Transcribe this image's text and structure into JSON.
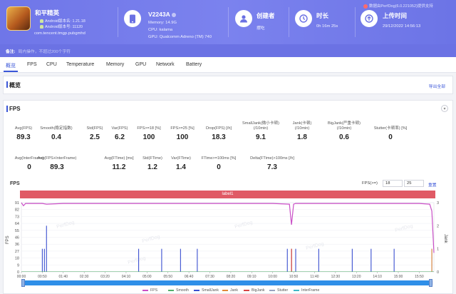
{
  "header": {
    "app": {
      "name": "和平精英",
      "android_line1": "Android版本名: 1.21.18",
      "android_line2": "Android版本号: 11120",
      "package": "com.tencent.tmgp.pubgmhd"
    },
    "device": {
      "model": "V2243A",
      "memory": "Memory: 14.9G",
      "cpu": "CPU: kalama",
      "gpu": "GPU: Qualcomm Adreno (TM) 740"
    },
    "creator": {
      "title": "创建者",
      "value": "摆吃"
    },
    "duration": {
      "title": "时长",
      "value": "0h 16m 25s"
    },
    "upload": {
      "title": "上传时间",
      "value": "29/12/2022 14:56:13"
    },
    "perfdog": "数据由PerfDog(6.0.221052)提供支持",
    "note_label": "备注:",
    "note_value": "局内操作，不超过200个字符"
  },
  "tabs": [
    "概览",
    "FPS",
    "CPU",
    "Temperature",
    "Memory",
    "GPU",
    "Network",
    "Battery"
  ],
  "active_tab": "概览",
  "overview": {
    "title": "概览",
    "export_label": "导出全部"
  },
  "fps_section": {
    "title": "FPS",
    "stats_row1": [
      {
        "label": "Avg(FPS)",
        "value": "89.3"
      },
      {
        "label": "Smooth(稳定指数)",
        "value": "0.4"
      },
      {
        "label": "Std(FPS)",
        "value": "2.5"
      },
      {
        "label": "Var(FPS)",
        "value": "6.2"
      },
      {
        "label": "FPS>=18 [%]",
        "value": "100"
      },
      {
        "label": "FPS>=25 [%]",
        "value": "100"
      },
      {
        "label": "Drop(FPS) [/h]",
        "value": "18.3"
      },
      {
        "label": "SmallJank(微小卡顿)\n(/10min)",
        "value": "9.1"
      },
      {
        "label": "Jank(卡顿)\n(/10min)",
        "value": "1.8"
      },
      {
        "label": "BigJank(严重卡顿)\n(/10min)",
        "value": "0.6"
      },
      {
        "label": "Stutter(卡顿率) [%]",
        "value": "0"
      }
    ],
    "stats_row2": [
      {
        "label": "Avg(InterFrame)",
        "value": "0"
      },
      {
        "label": "Avg(FPS+InterFrame)",
        "value": "89.3"
      },
      {
        "label": "Avg(FTime) [ms]",
        "value": "11.2"
      },
      {
        "label": "Std(FTime)",
        "value": "1.2"
      },
      {
        "label": "Var(FTime)",
        "value": "1.4"
      },
      {
        "label": "FTime>=100ms [%]",
        "value": "0"
      },
      {
        "label": "Delta(FTime)>100ms [/h]",
        "value": "7.3"
      }
    ],
    "chart_title": "FPS",
    "fps_threshold_label": "FPS(>=)",
    "fps_threshold_a": "18",
    "fps_threshold_b": "25",
    "reset_label": "重置",
    "label_band": "label1",
    "watermark": "PerfDog"
  },
  "chart_data": {
    "type": "line",
    "title": "FPS",
    "ylabel": "FPS",
    "y2label": "Jank",
    "y_ticks": [
      "91",
      "82",
      "73",
      "64",
      "55",
      "46",
      "36",
      "27",
      "18",
      "9",
      "0"
    ],
    "y2_ticks": [
      "3",
      "2",
      "1",
      "0"
    ],
    "ylim": [
      0,
      91
    ],
    "y2lim": [
      0,
      3
    ],
    "x_ticks": [
      "00:00",
      "00:50",
      "01:40",
      "02:30",
      "03:20",
      "04:10",
      "05:00",
      "05:50",
      "06:40",
      "07:30",
      "08:20",
      "09:10",
      "10:00",
      "10:50",
      "11:40",
      "12:30",
      "13:20",
      "14:10",
      "15:00",
      "15:50"
    ],
    "series": [
      {
        "name": "FPS",
        "color": "#c94fc6",
        "x": [
          "00:00",
          "00:05",
          "00:10",
          "00:50",
          "01:00",
          "01:40",
          "02:30",
          "03:20",
          "04:10",
          "05:00",
          "05:50",
          "06:40",
          "07:30",
          "08:20",
          "09:10",
          "10:00",
          "10:40",
          "10:45",
          "10:50",
          "10:55",
          "11:40",
          "12:30",
          "13:20",
          "14:10",
          "15:00",
          "15:50",
          "16:15",
          "16:20",
          "16:25"
        ],
        "values": [
          91,
          87,
          90,
          90,
          89,
          90,
          90,
          90,
          90,
          90,
          90,
          90,
          90,
          90,
          90,
          90,
          89,
          62,
          89,
          90,
          90,
          90,
          90,
          90,
          90,
          90,
          89,
          80,
          25
        ]
      },
      {
        "name": "Smooth",
        "color": "#52b06b",
        "values": []
      },
      {
        "name": "SmallJank",
        "color": "#3a4fd0",
        "x": [
          "00:50",
          "00:55",
          "01:00",
          "04:40",
          "05:35",
          "06:20",
          "07:00",
          "10:35",
          "10:45",
          "10:55",
          "11:50",
          "13:10",
          "13:55",
          "14:50",
          "16:20"
        ],
        "values": [
          1,
          1,
          2,
          1,
          1,
          1,
          1,
          1,
          1,
          1,
          1,
          1,
          1,
          1,
          1
        ]
      },
      {
        "name": "Jank",
        "color": "#e08a3a",
        "x": [
          "10:45",
          "16:20"
        ],
        "values": [
          1,
          1
        ]
      },
      {
        "name": "BigJank",
        "color": "#d64545",
        "x": [
          "10:45"
        ],
        "values": [
          1
        ]
      },
      {
        "name": "Stutter",
        "color": "#9aa3c0",
        "values": []
      },
      {
        "name": "InterFrame",
        "color": "#3fb8c8",
        "values": []
      }
    ]
  }
}
